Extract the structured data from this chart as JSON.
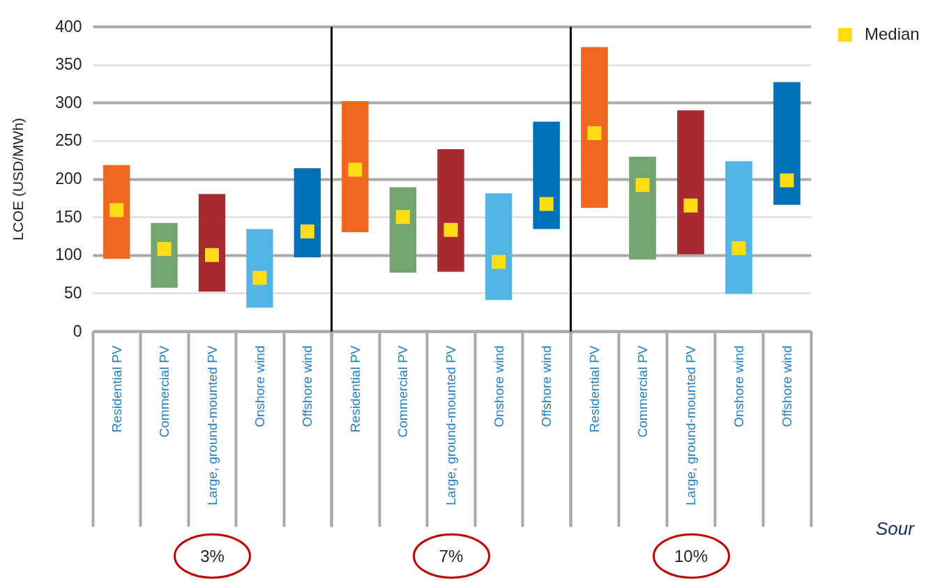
{
  "chart_data": [
    {
      "type": "bar",
      "ylabel": "LCOE (USD/MWh)",
      "xlabel": "3%",
      "categories": [
        "Residential PV",
        "Commercial PV",
        "Large, ground-mounted PV",
        "Onshore wind",
        "Offshore wind"
      ],
      "series": [
        {
          "colors": [
            "#f06722",
            "#74a570",
            "#a72a31",
            "#52b5e5",
            "#0071b9"
          ],
          "base": [
            95,
            57,
            52,
            31,
            97
          ],
          "values": [
            123,
            85,
            128,
            103,
            117
          ]
        },
        {
          "type": "scatter",
          "color": "#fedd17",
          "marker": "square",
          "values": [
            159,
            108,
            100,
            70,
            131
          ]
        }
      ],
      "ylim": [
        0,
        400
      ],
      "yticks": [
        0,
        50,
        100,
        150,
        200,
        250,
        300,
        350,
        400
      ],
      "grid": "y"
    },
    {
      "type": "bar",
      "xlabel": "7%",
      "categories": [
        "Residential PV",
        "Commercial PV",
        "Large, ground-mounted PV",
        "Onshore wind",
        "Offshore wind"
      ],
      "series": [
        {
          "colors": [
            "#f06722",
            "#74a570",
            "#a72a31",
            "#52b5e5",
            "#0071b9"
          ],
          "base": [
            130,
            77,
            78,
            41,
            134
          ],
          "values": [
            172,
            112,
            161,
            140,
            141
          ]
        },
        {
          "type": "scatter",
          "color": "#fedd17",
          "marker": "square",
          "values": [
            212,
            150,
            133,
            91,
            167
          ]
        }
      ],
      "ylim": [
        0,
        400
      ],
      "yticks": [
        0,
        50,
        100,
        150,
        200,
        250,
        300,
        350,
        400
      ],
      "grid": "y",
      "tick_labels": "x"
    },
    {
      "type": "bar",
      "xlabel": "10%",
      "categories": [
        "Residential PV",
        "Commercial PV",
        "Large, ground-mounted PV",
        "Onshore wind",
        "Offshore wind"
      ],
      "series": [
        {
          "colors": [
            "#f06722",
            "#74a570",
            "#a72a31",
            "#52b5e5",
            "#0071b9"
          ],
          "base": [
            162,
            94,
            101,
            49,
            166
          ],
          "values": [
            211,
            135,
            189,
            174,
            161
          ]
        },
        {
          "type": "scatter",
          "name": "Median",
          "color": "#fedd17",
          "marker": "square",
          "values": [
            260,
            192,
            165,
            109,
            198
          ]
        }
      ],
      "ylim": [
        0,
        400
      ],
      "yticks": [
        0,
        50,
        100,
        150,
        200,
        250,
        300,
        350,
        400
      ],
      "grid": "y",
      "tick_labels": "x",
      "legend": "top right",
      "annotations": [
        "Sour"
      ]
    }
  ]
}
